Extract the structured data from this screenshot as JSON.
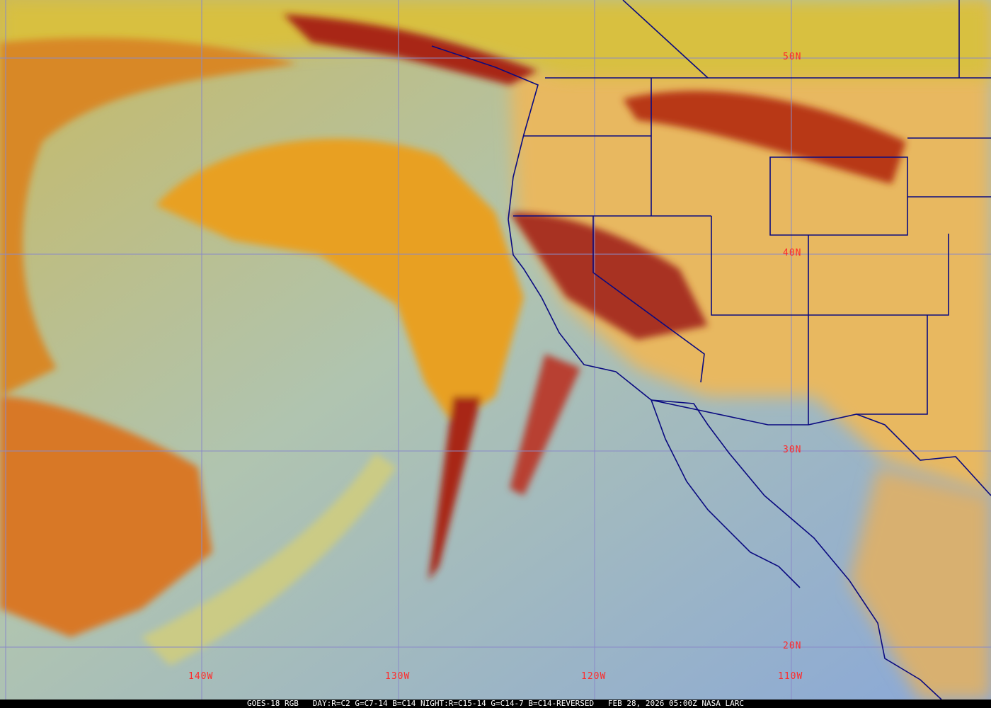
{
  "caption": "GOES-18 RGB   DAY:R=C2 G=C7-14 B=C14 NIGHT:R=C15-14 G=C14-7 B=C14-REVERSED   FEB 28, 2026 05:00Z NASA LARC",
  "latitude_labels": [
    "50N",
    "40N",
    "30N",
    "20N"
  ],
  "longitude_labels": [
    "140W",
    "130W",
    "120W",
    "110W"
  ],
  "colors": {
    "label": "#ff2a2a",
    "grid": "#8a8ac8",
    "borders": "#0a0a80",
    "ocean": "#a8c0b8",
    "land": "#e8b860",
    "cloud_high": "#b02818"
  }
}
